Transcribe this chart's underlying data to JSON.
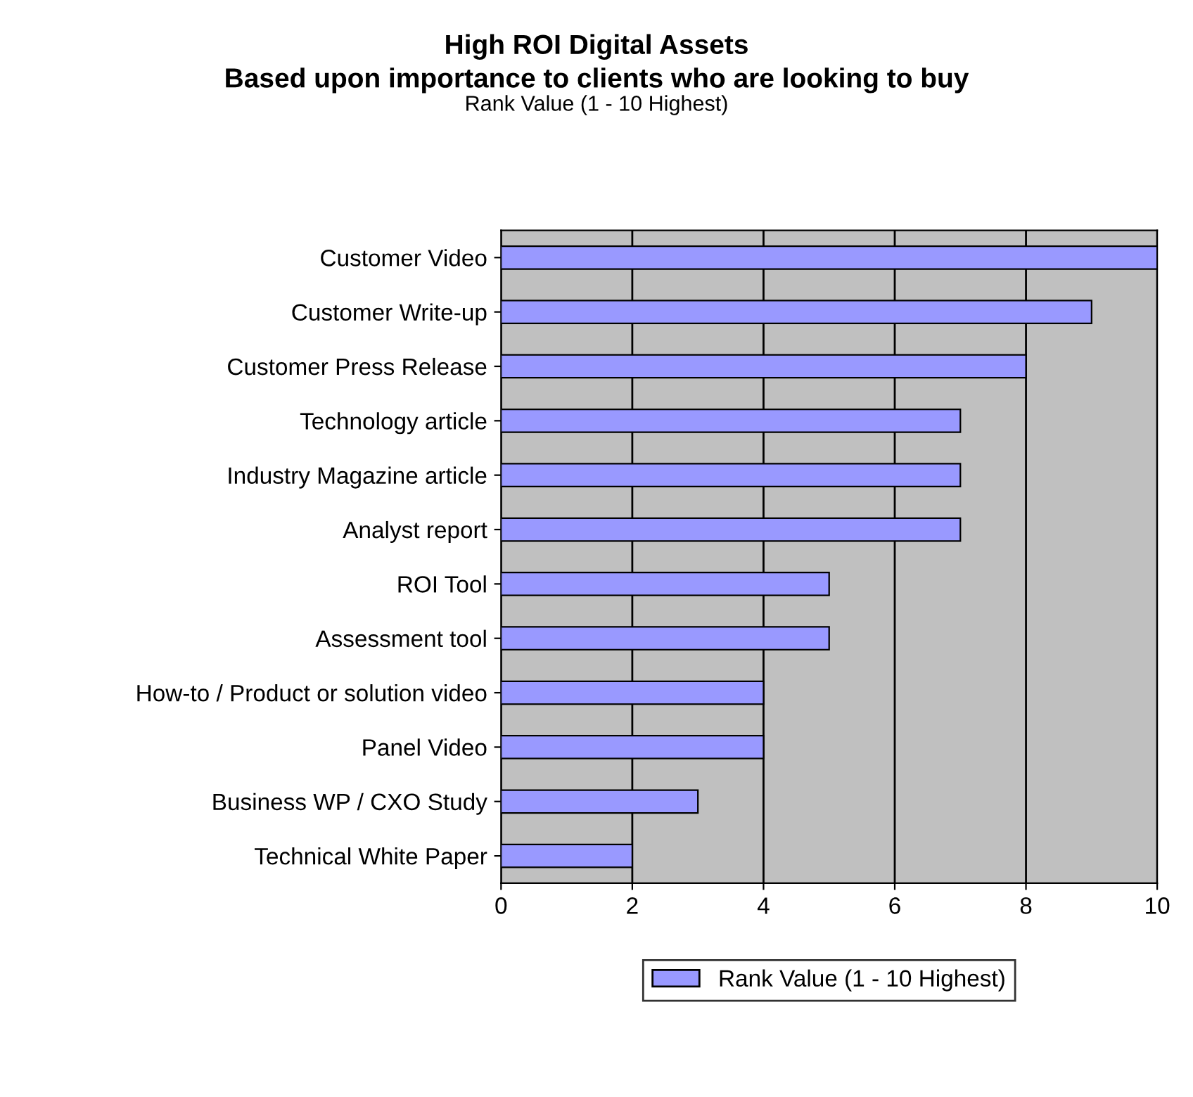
{
  "chart_data": {
    "type": "bar",
    "orientation": "horizontal",
    "title": "High ROI Digital Assets\nBased upon importance to clients who are looking to buy",
    "subtitle": "Rank Value (1 - 10 Highest)",
    "categories": [
      "Customer Video",
      "Customer Write-up",
      "Customer Press Release",
      "Technology article",
      "Industry Magazine article",
      "Analyst report",
      "ROI Tool",
      "Assessment tool",
      "How-to / Product or solution video",
      "Panel Video",
      "Business WP / CXO Study",
      "Technical White Paper"
    ],
    "series": [
      {
        "name": "Rank Value (1 - 10 Highest)",
        "color": "#9999ff",
        "values": [
          10,
          9,
          8,
          7,
          7,
          7,
          5,
          5,
          4,
          4,
          3,
          2
        ]
      }
    ],
    "xlim": [
      0,
      10
    ],
    "xticks": [
      0,
      2,
      4,
      6,
      8,
      10
    ],
    "grid": "x",
    "legend": "bottom"
  }
}
